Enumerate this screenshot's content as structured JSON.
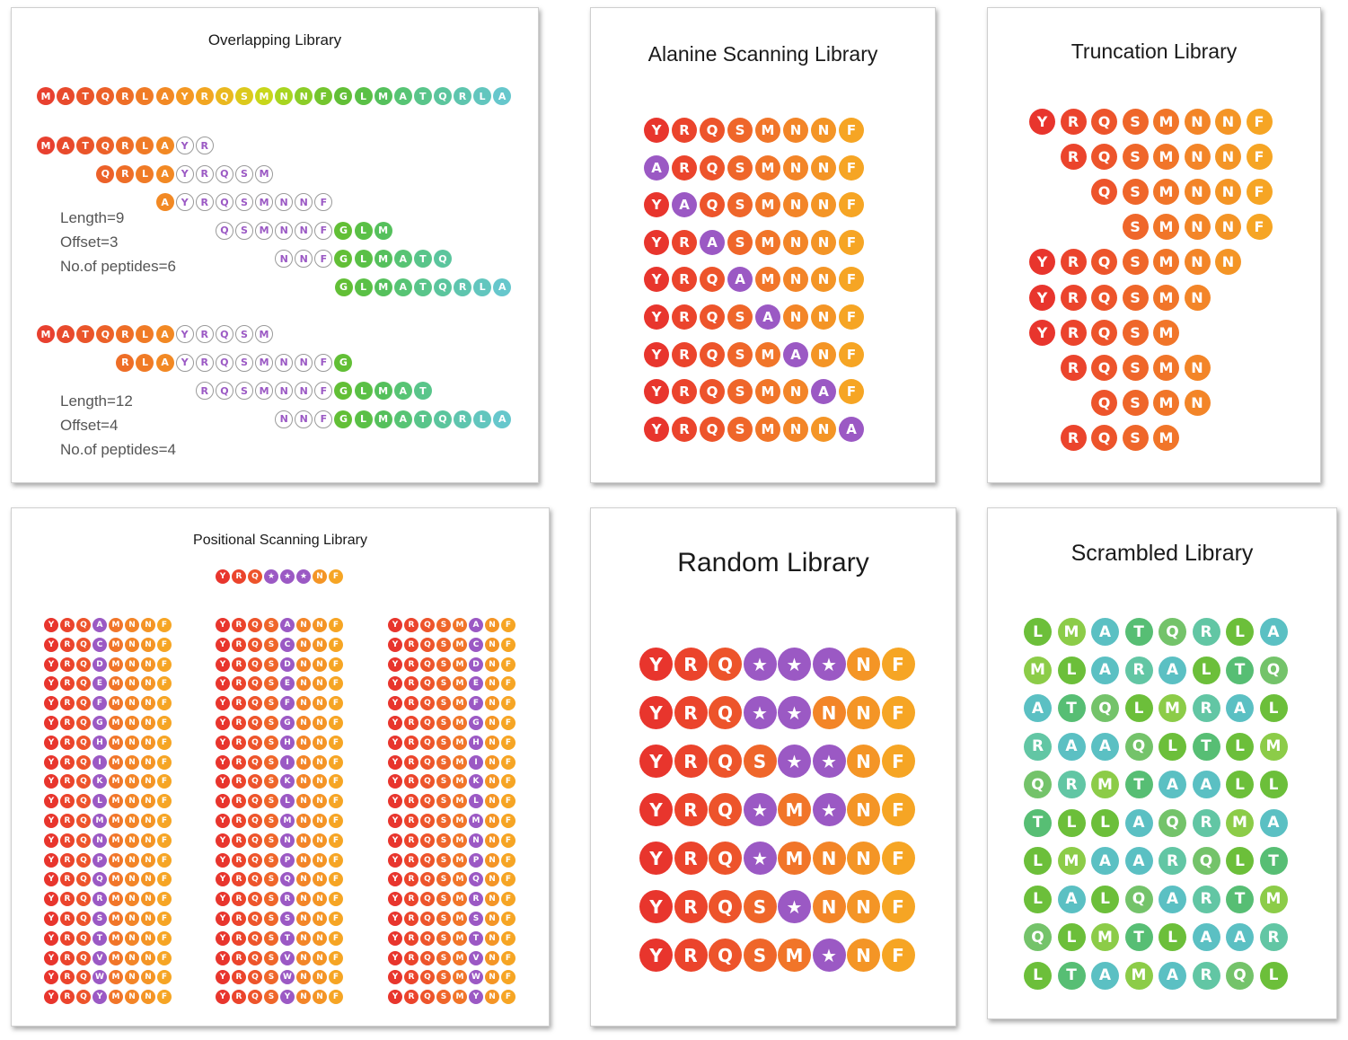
{
  "panels": {
    "overlapping": {
      "title": "Overlapping Library",
      "full_sequence": "MATQRLAYRQSMNNFGLMATQRLA",
      "group1": {
        "rows": [
          {
            "start": 0,
            "text": "MATQRLAYR"
          },
          {
            "start": 3,
            "text": "QRLAYRQSM"
          },
          {
            "start": 6,
            "text": "AYRQSMNNF"
          },
          {
            "start": 9,
            "text": "QSMNNFGLM"
          },
          {
            "start": 12,
            "text": "NNFGLMATQ"
          },
          {
            "start": 15,
            "text": "GLMATQRLA"
          }
        ],
        "stats": [
          "Length=9",
          "Offset=3",
          "No.of peptides=6"
        ]
      },
      "group2": {
        "rows": [
          {
            "start": 0,
            "text": "MATQRLAYRQSM"
          },
          {
            "start": 4,
            "text": "RLAYRQSMNNFG"
          },
          {
            "start": 8,
            "text": "RQSMNNFGLMAT"
          },
          {
            "start": 12,
            "text": "NNFGLMATQRLA"
          }
        ],
        "stats": [
          "Length=12",
          "Offset=4",
          "No.of peptides=4"
        ]
      }
    },
    "alanine": {
      "title": "Alanine Scanning Library",
      "rows": [
        "YRQSMNNF",
        "ARQSMNNF",
        "YAQSMNNF",
        "YRASMNNF",
        "YRQAMNNF",
        "YRQSANNF",
        "YRQSMANF",
        "YRQSMNAF",
        "YRQSMNNA"
      ]
    },
    "truncation": {
      "title": "Truncation Library",
      "rows": [
        {
          "start": 0,
          "text": "YRQSMNNF"
        },
        {
          "start": 1,
          "text": "RQSMNNF"
        },
        {
          "start": 2,
          "text": "QSMNNF"
        },
        {
          "start": 3,
          "text": "SMNNF"
        },
        {
          "start": 0,
          "text": "YRQSMNN"
        },
        {
          "start": 0,
          "text": "YRQSMN"
        },
        {
          "start": 0,
          "text": "YRQSM"
        },
        {
          "start": 1,
          "text": "RQSMN"
        },
        {
          "start": 2,
          "text": "QSMN"
        },
        {
          "start": 1,
          "text": "RQSM"
        }
      ]
    },
    "positional": {
      "title": "Positional Scanning Library",
      "template": "YRQ***NF",
      "substitutions": "ACDEFGHIKLMNPQRSTVWY",
      "columns": [
        {
          "prefix": "YRQ",
          "suffix": "MNNF"
        },
        {
          "prefix": "YRQS",
          "suffix": "NNF"
        },
        {
          "prefix": "YRQSM",
          "suffix": "NF"
        }
      ]
    },
    "random": {
      "title": "Random Library",
      "rows": [
        "YRQ***NF",
        "YRQ**NNF",
        "YRQS**NF",
        "YRQ*M*NF",
        "YRQ*MNNF",
        "YRQS*NNF",
        "YRQSM*NF"
      ]
    },
    "scrambled": {
      "title": "Scrambled Library",
      "rows": [
        "LMATQRLA",
        "MLARALTQ",
        "ATQLMRAL",
        "RAAQLTLM",
        "QRMTAALL",
        "TLLAQRMA",
        "LMAARQLT",
        "LALQARTM",
        "QLMTLAAR",
        "LTAMARQL"
      ]
    }
  }
}
